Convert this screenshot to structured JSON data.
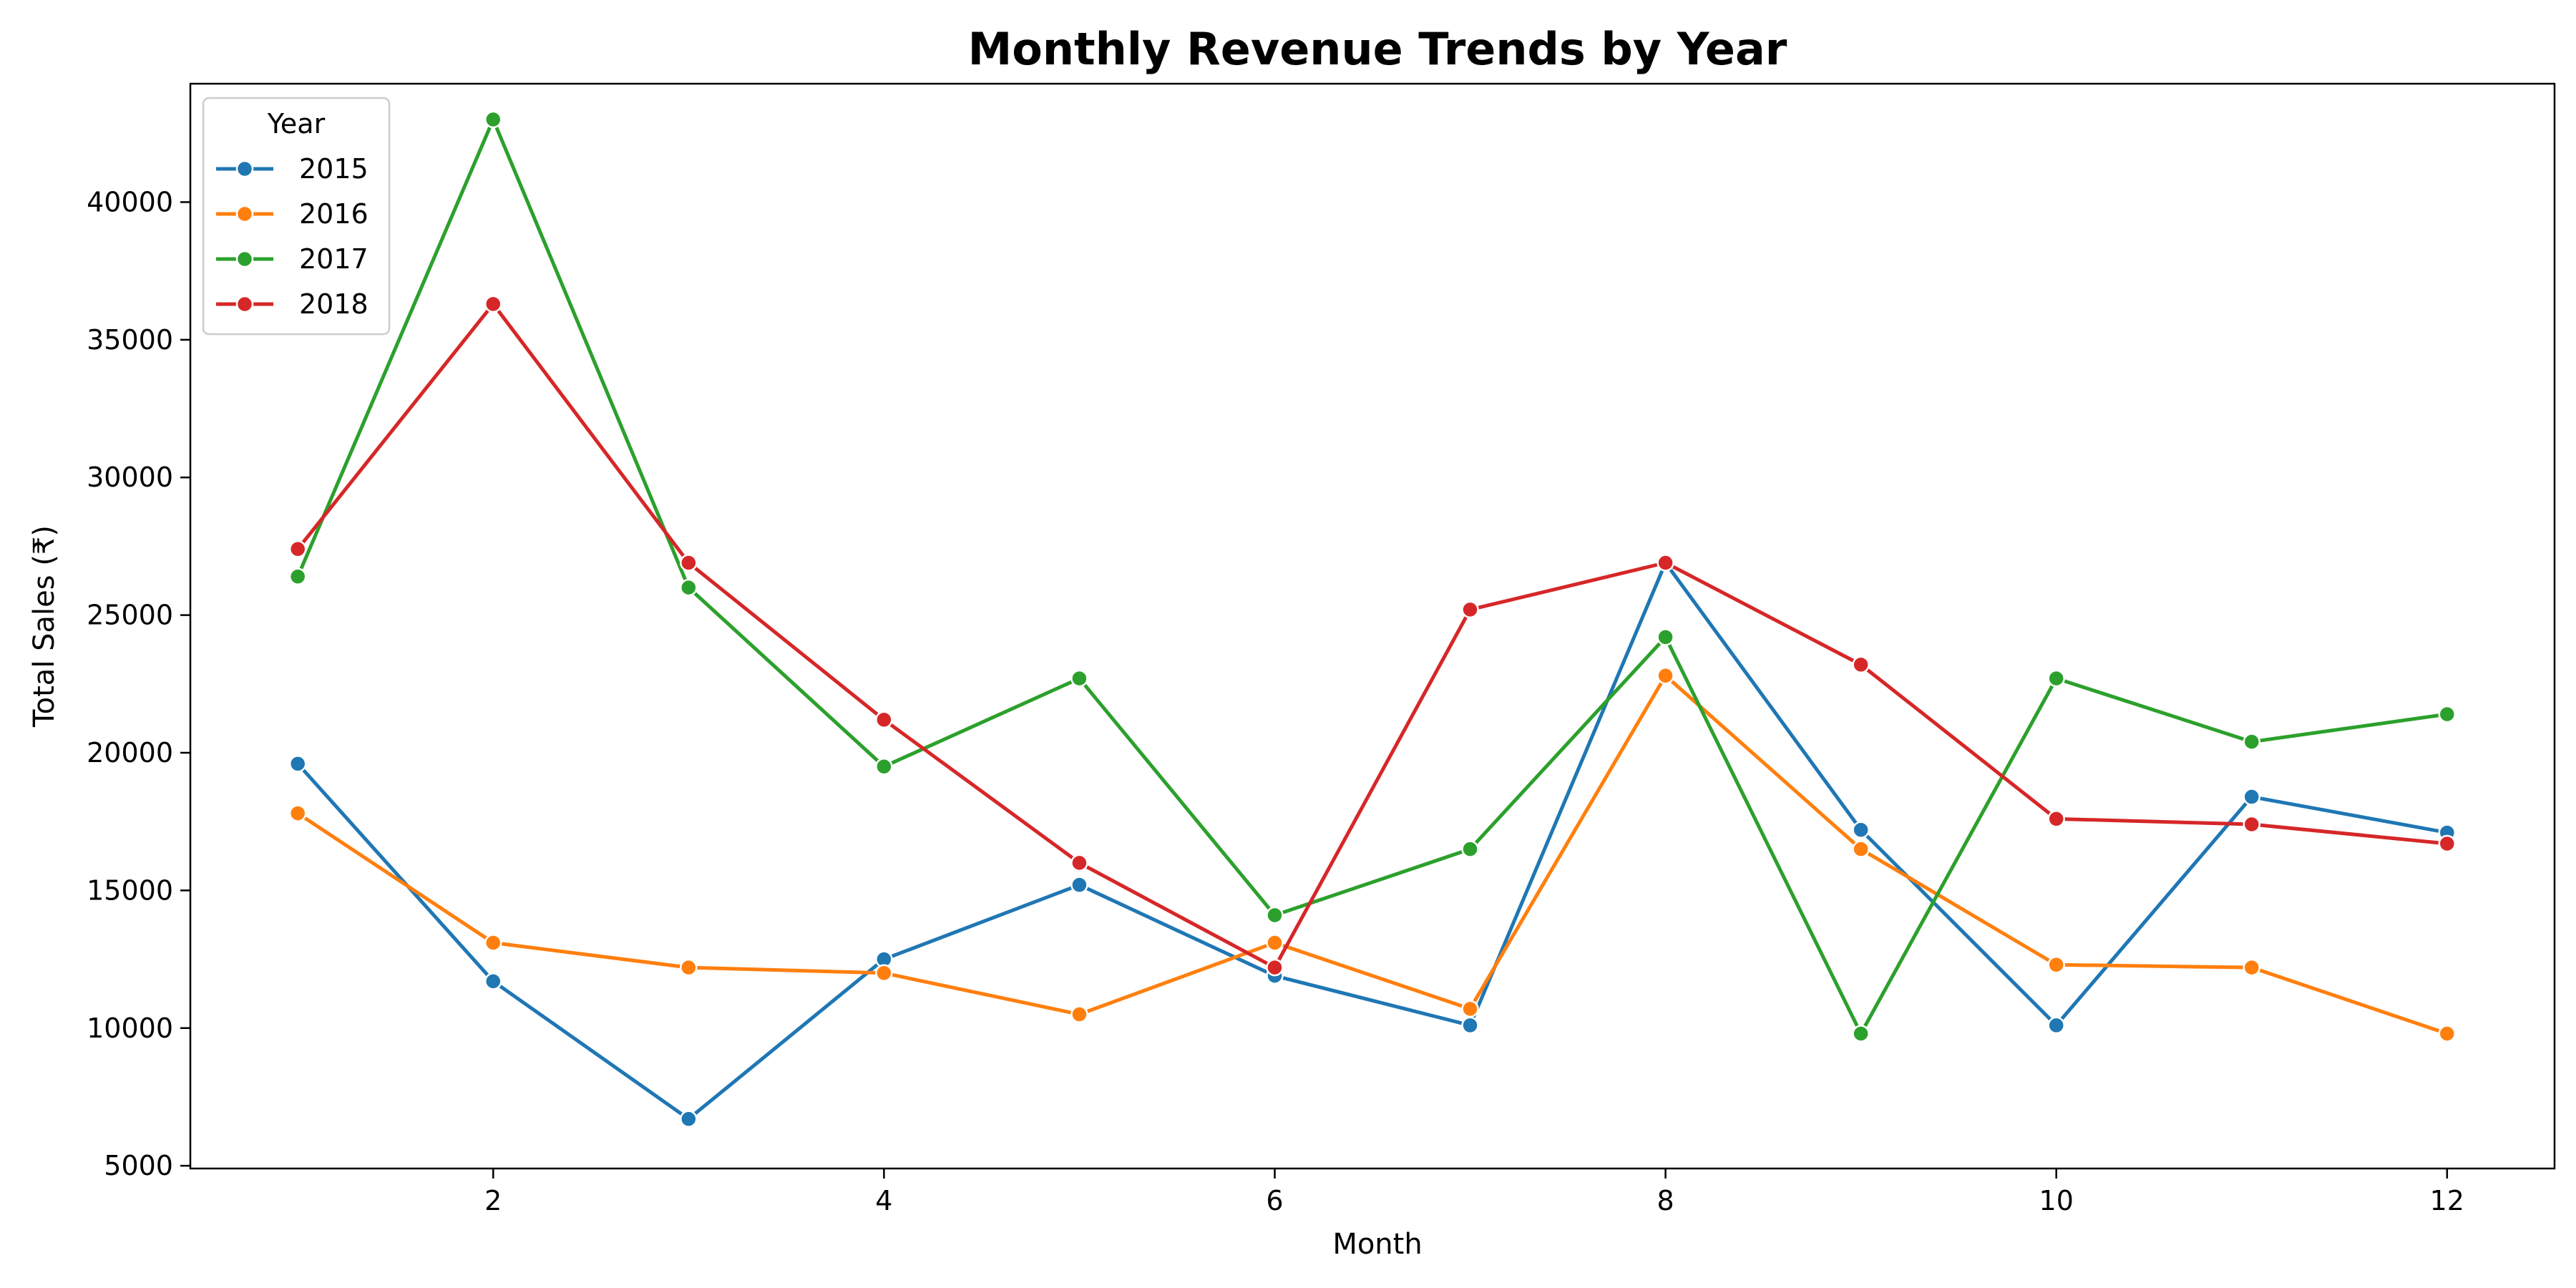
{
  "chart_data": {
    "type": "line",
    "title": "Monthly Revenue Trends by Year",
    "xlabel": "Month",
    "ylabel": "Total Sales (₹)",
    "x": [
      1,
      2,
      3,
      4,
      5,
      6,
      7,
      8,
      9,
      10,
      11,
      12
    ],
    "xlim": [
      0.45,
      12.55
    ],
    "ylim": [
      4900,
      44300
    ],
    "xticks": [
      2,
      4,
      6,
      8,
      10,
      12
    ],
    "yticks": [
      5000,
      10000,
      15000,
      20000,
      25000,
      30000,
      35000,
      40000
    ],
    "grid": false,
    "legend": {
      "title": "Year",
      "position": "top-left"
    },
    "series": [
      {
        "name": "2015",
        "color": "#1f77b4",
        "values": [
          19600,
          11700,
          6700,
          12500,
          15200,
          11900,
          10100,
          26900,
          17200,
          10100,
          18400,
          17100
        ]
      },
      {
        "name": "2016",
        "color": "#ff7f0e",
        "values": [
          17800,
          13100,
          12200,
          12000,
          10500,
          13100,
          10700,
          22800,
          16500,
          12300,
          12200,
          9800
        ]
      },
      {
        "name": "2017",
        "color": "#2ca02c",
        "values": [
          26400,
          43000,
          26000,
          19500,
          22700,
          14100,
          16500,
          24200,
          9800,
          22700,
          20400,
          21400
        ]
      },
      {
        "name": "2018",
        "color": "#d62728",
        "values": [
          27400,
          36300,
          26900,
          21200,
          16000,
          12200,
          25200,
          26900,
          23200,
          17600,
          17400,
          16700
        ]
      }
    ]
  }
}
